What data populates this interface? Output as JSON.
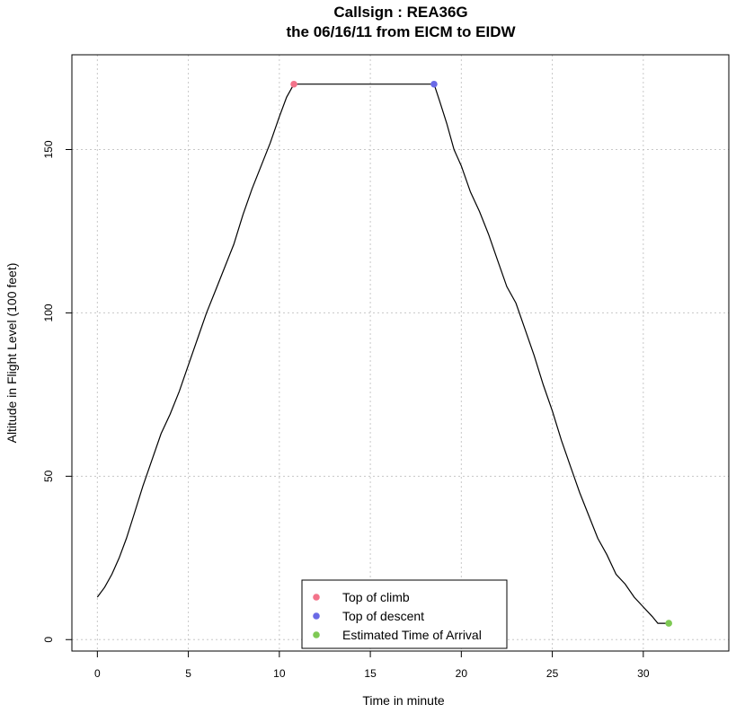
{
  "chart_data": {
    "type": "line",
    "title": "Callsign : REA36G",
    "subtitle": "the 06/16/11 from EICM to EIDW",
    "xlabel": "Time in minute",
    "ylabel": "Altitude in Flight Level (100 feet)",
    "xlim": [
      -1.4,
      34.7
    ],
    "ylim": [
      -3.5,
      179
    ],
    "x_ticks": [
      0,
      5,
      10,
      15,
      20,
      25,
      30
    ],
    "y_ticks": [
      0,
      50,
      100,
      150
    ],
    "grid": true,
    "series": [
      {
        "color": "#000000",
        "points": [
          [
            0.0,
            13
          ],
          [
            0.4,
            16
          ],
          [
            0.8,
            20
          ],
          [
            1.2,
            25
          ],
          [
            1.6,
            31
          ],
          [
            2.0,
            38
          ],
          [
            2.5,
            47
          ],
          [
            3.0,
            55
          ],
          [
            3.5,
            63
          ],
          [
            4.0,
            69
          ],
          [
            4.5,
            76
          ],
          [
            5.0,
            84
          ],
          [
            5.5,
            92
          ],
          [
            6.0,
            100
          ],
          [
            6.5,
            107
          ],
          [
            7.0,
            114
          ],
          [
            7.5,
            121
          ],
          [
            8.0,
            130
          ],
          [
            8.5,
            138
          ],
          [
            9.0,
            145
          ],
          [
            9.5,
            152
          ],
          [
            10.0,
            160
          ],
          [
            10.4,
            166
          ],
          [
            10.8,
            170
          ],
          [
            18.5,
            170
          ],
          [
            18.8,
            165
          ],
          [
            19.2,
            158
          ],
          [
            19.6,
            150
          ],
          [
            20.0,
            145
          ],
          [
            20.5,
            137
          ],
          [
            21.0,
            131
          ],
          [
            21.5,
            124
          ],
          [
            22.0,
            116
          ],
          [
            22.5,
            108
          ],
          [
            23.0,
            103
          ],
          [
            23.5,
            95
          ],
          [
            24.0,
            87
          ],
          [
            24.5,
            78
          ],
          [
            25.0,
            70
          ],
          [
            25.5,
            61
          ],
          [
            26.0,
            53
          ],
          [
            26.5,
            45
          ],
          [
            27.0,
            38
          ],
          [
            27.5,
            31
          ],
          [
            28.0,
            26
          ],
          [
            28.5,
            20
          ],
          [
            29.0,
            17
          ],
          [
            29.5,
            13
          ],
          [
            30.0,
            10
          ],
          [
            30.5,
            7
          ],
          [
            30.8,
            5
          ],
          [
            31.4,
            5
          ]
        ]
      }
    ],
    "markers": [
      {
        "name": "Top of climb",
        "x": 10.8,
        "y": 170,
        "color": "#f3738a"
      },
      {
        "name": "Top of descent",
        "x": 18.5,
        "y": 170,
        "color": "#6a6ae6"
      },
      {
        "name": "Estimated Time of Arrival",
        "x": 31.4,
        "y": 5,
        "color": "#7ec954"
      }
    ],
    "legend": {
      "placement": "bottom-center",
      "entries": [
        "Top of climb",
        "Top of descent",
        "Estimated Time of Arrival"
      ]
    }
  }
}
